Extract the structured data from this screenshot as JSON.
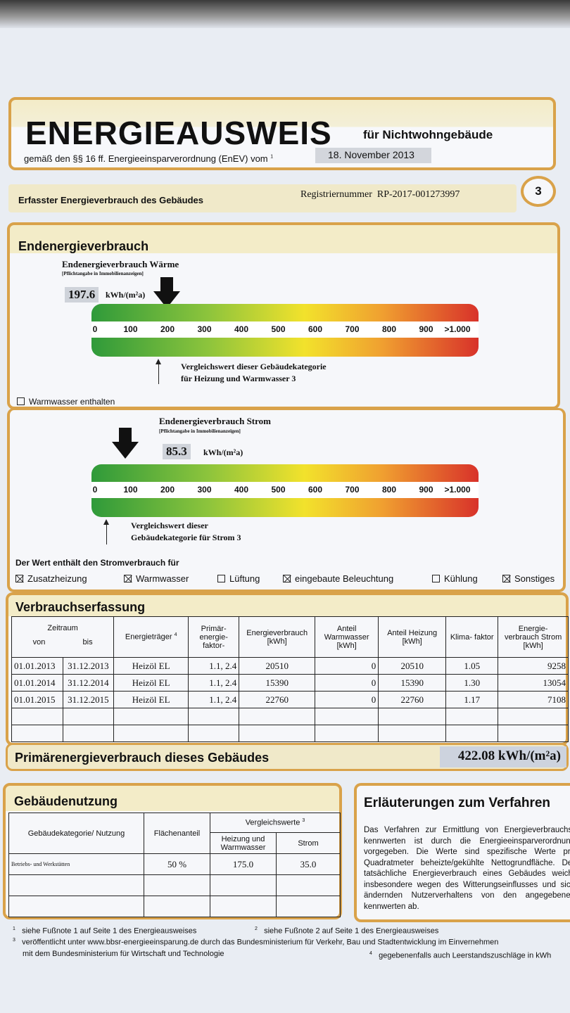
{
  "header": {
    "title": "ENERGIEAUSWEIS",
    "subtitle": "für Nichtwohngebäude",
    "legal": "gemäß den §§ 16 ff. Energieeinsparverordnung (EnEV) vom",
    "legal_footnote": "1",
    "date": "18. November 2013"
  },
  "section_bar": {
    "label": "Erfasster Energieverbrauch des Gebäudes",
    "reg_label": "Registriernummer",
    "reg_number": "RP-2017-001273997",
    "page_number": "3"
  },
  "endenergie": {
    "title": "Endenergieverbrauch",
    "heat_label": "Endenergieverbrauch Wärme",
    "heat_note": "[Pflichtangabe in Immobilienanzeigen]",
    "heat_value": 197.6,
    "heat_value_text": "197.6",
    "unit": "kWh/(m²a)",
    "scale_ticks": [
      "0",
      "100",
      "200",
      "300",
      "400",
      "500",
      "600",
      "700",
      "800",
      "900",
      ">1.000"
    ],
    "heat_compare_line1": "Vergleichswert dieser Gebäudekategorie",
    "heat_compare_line2": "für Heizung und Warmwasser 3",
    "heat_compare_value": 175.0,
    "warmwasser_label": "Warmwasser enthalten",
    "warmwasser_checked": false,
    "strom_label": "Endenergieverbrauch Strom",
    "strom_note": "[Pflichtangabe in Immobilienanzeigen]",
    "strom_value": 85.3,
    "strom_value_text": "85.3",
    "strom_compare_line1": "Vergleichswert dieser",
    "strom_compare_line2": "Gebäudekategorie für Strom 3",
    "strom_compare_value": 35.0,
    "includes_label": "Der Wert enthält den Stromverbrauch für",
    "includes": [
      {
        "label": "Zusatzheizung",
        "checked": true
      },
      {
        "label": "Warmwasser",
        "checked": true
      },
      {
        "label": "Lüftung",
        "checked": false
      },
      {
        "label": "eingebaute Beleuchtung",
        "checked": true
      },
      {
        "label": "Kühlung",
        "checked": false
      },
      {
        "label": "Sonstiges",
        "checked": true
      }
    ]
  },
  "verbrauch": {
    "title": "Verbrauchserfassung",
    "headers": {
      "zeitraum": "Zeitraum",
      "von": "von",
      "bis": "bis",
      "traeger": "Energieträger",
      "traeger_fn": "4",
      "faktor": "Primär- energie- faktor-",
      "verbrauch": "Energieverbrauch [kWh]",
      "warmwasser": "Anteil Warmwasser [kWh]",
      "heizung": "Anteil Heizung [kWh]",
      "klima": "Klima- faktor",
      "strom": "Energie- verbrauch Strom [kWh]"
    },
    "rows": [
      [
        "01.01.2013",
        "31.12.2013",
        "Heizöl EL",
        "1.1, 2.4",
        "20510",
        "0",
        "20510",
        "1.05",
        "9258"
      ],
      [
        "01.01.2014",
        "31.12.2014",
        "Heizöl EL",
        "1.1, 2.4",
        "15390",
        "0",
        "15390",
        "1.30",
        "13054"
      ],
      [
        "01.01.2015",
        "31.12.2015",
        "Heizöl EL",
        "1.1, 2.4",
        "22760",
        "0",
        "22760",
        "1.17",
        "7108"
      ]
    ]
  },
  "primaer": {
    "label": "Primärenergieverbrauch dieses Gebäudes",
    "value": "422.08 kWh/(m²a)"
  },
  "nutzung": {
    "title": "Gebäudenutzung",
    "h_kat": "Gebäudekategorie/ Nutzung",
    "h_flaeche": "Flächenanteil",
    "h_vergleich": "Vergleichswerte",
    "h_vergleich_fn": "3",
    "h_heizung": "Heizung und Warmwasser",
    "h_strom": "Strom",
    "rows": [
      [
        "Betriebs- und Werkstätten",
        "50 %",
        "175.0",
        "35.0"
      ]
    ]
  },
  "erlaeuterungen": {
    "title": "Erläuterungen zum Verfahren",
    "text": "Das Verfahren zur Ermittlung von Energieverbrauchs-kennwerten ist durch die Energieeinsparverordnung vorgegeben. Die Werte sind spezifische Werte pro Quadratmeter beheizte/gekühlte Nettogrundfläche. Der tatsächliche Energieverbrauch eines Gebäudes weicht insbesondere wegen des Witterungseinflusses und sich ändernden Nutzerverhaltens von den angegebenen kennwerten ab."
  },
  "footnotes": {
    "f1": "siehe Fußnote 1 auf Seite 1 des Energieausweises",
    "f2": "siehe Fußnote 2 auf Seite 1 des Energieausweises",
    "f3a": "veröffentlicht unter www.bbsr-energieeinsparung.de durch das Bundesministerium für Verkehr, Bau und Stadtentwicklung im Einvernehmen",
    "f3b": "mit dem Bundesministerium für Wirtschaft und Technologie",
    "f4": "gegebenenfalls auch Leerstandszuschläge in kWh"
  }
}
